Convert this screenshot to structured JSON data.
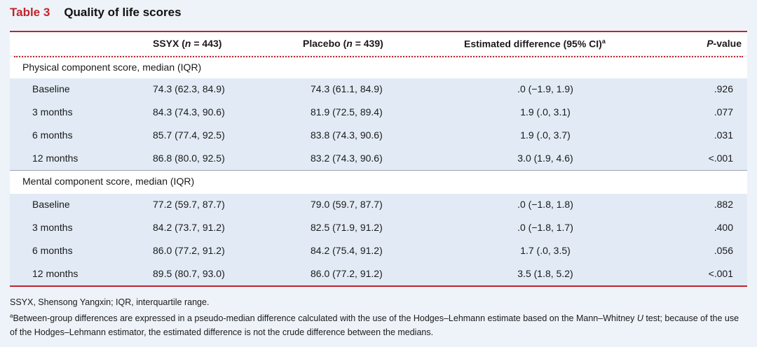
{
  "table": {
    "number": "Table 3",
    "title": "Quality of life scores",
    "headers": {
      "ssyx_pre": "SSYX (",
      "ssyx_n": "n",
      "ssyx_post": " = 443)",
      "placebo_pre": "Placebo (",
      "placebo_n": "n",
      "placebo_post": " = 439)",
      "diff": "Estimated difference (95% CI)",
      "diff_sup": "a",
      "p": "P",
      "p_post": "-value"
    },
    "sections": [
      {
        "label": "Physical component score, median (IQR)",
        "rows": [
          {
            "label": "Baseline",
            "ssyx": "74.3 (62.3, 84.9)",
            "placebo": "74.3 (61.1, 84.9)",
            "diff": ".0 (−1.9, 1.9)",
            "p": ".926"
          },
          {
            "label": "3 months",
            "ssyx": "84.3 (74.3, 90.6)",
            "placebo": "81.9 (72.5, 89.4)",
            "diff": "1.9 (.0, 3.1)",
            "p": ".077"
          },
          {
            "label": "6 months",
            "ssyx": "85.7 (77.4, 92.5)",
            "placebo": "83.8 (74.3, 90.6)",
            "diff": "1.9 (.0, 3.7)",
            "p": ".031"
          },
          {
            "label": "12 months",
            "ssyx": "86.8 (80.0, 92.5)",
            "placebo": "83.2 (74.3, 90.6)",
            "diff": "3.0 (1.9, 4.6)",
            "p": "<.001"
          }
        ]
      },
      {
        "label": "Mental component score, median (IQR)",
        "rows": [
          {
            "label": "Baseline",
            "ssyx": "77.2 (59.7, 87.7)",
            "placebo": "79.0 (59.7, 87.7)",
            "diff": ".0 (−1.8, 1.8)",
            "p": ".882"
          },
          {
            "label": "3 months",
            "ssyx": "84.2 (73.7, 91.2)",
            "placebo": "82.5 (71.9, 91.2)",
            "diff": ".0 (−1.8, 1.7)",
            "p": ".400"
          },
          {
            "label": "6 months",
            "ssyx": "86.0 (77.2, 91.2)",
            "placebo": "84.2 (75.4, 91.2)",
            "diff": "1.7 (.0, 3.5)",
            "p": ".056"
          },
          {
            "label": "12 months",
            "ssyx": "89.5 (80.7, 93.0)",
            "placebo": "86.0 (77.2, 91.2)",
            "diff": "3.5 (1.8, 5.2)",
            "p": "<.001"
          }
        ]
      }
    ],
    "footnotes": {
      "abbrev": "SSYX, Shensong Yangxin; IQR, interquartile range.",
      "note_sup": "a",
      "note_text_1": "Between-group differences are expressed in a pseudo-median difference calculated with the use of the Hodges–Lehmann estimate based on the Mann–Whitney ",
      "note_u": "U",
      "note_text_2": " test; because of the use of the Hodges–Lehmann estimator, the estimated difference is not the crude difference between the medians."
    }
  }
}
